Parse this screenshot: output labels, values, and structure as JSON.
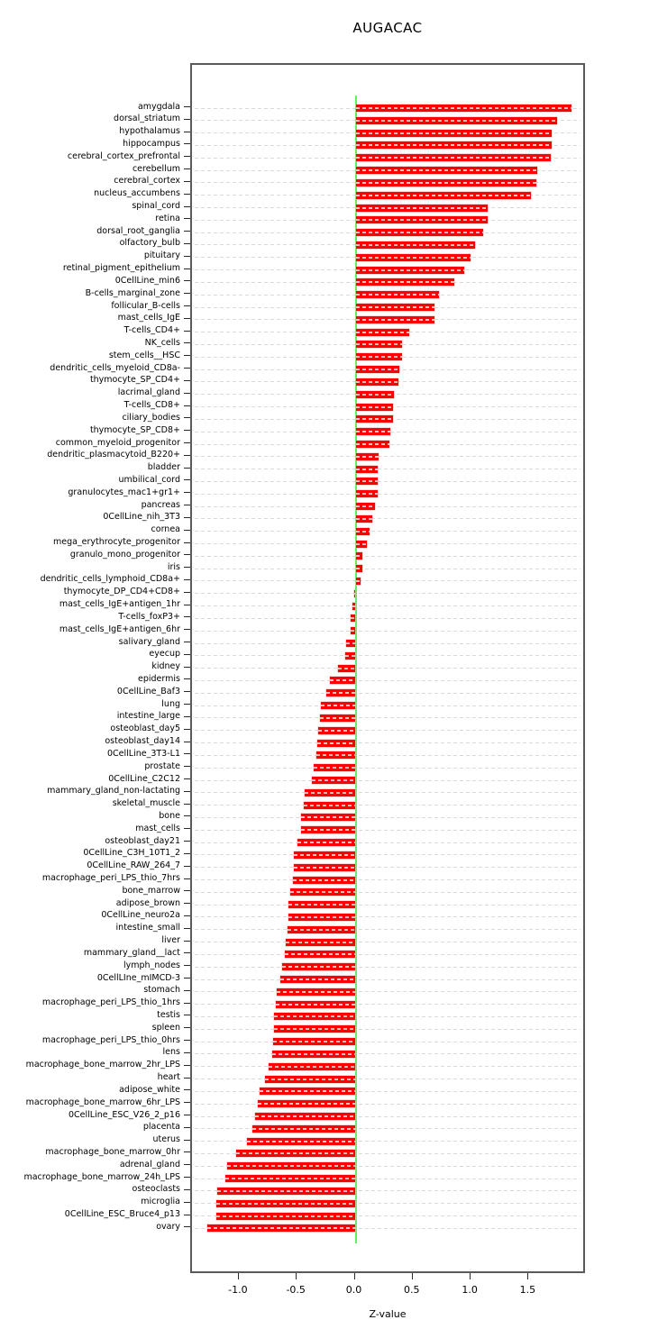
{
  "chart_data": {
    "type": "bar",
    "orientation": "horizontal",
    "title": "AUGACAC",
    "xlabel": "Z-value",
    "ylabel": "",
    "xlim": [
      -1.41,
      2.0
    ],
    "x_ticks": [
      -1.0,
      -0.5,
      0.0,
      0.5,
      1.0,
      1.5
    ],
    "x_tick_labels": [
      "-1.0",
      "-0.5",
      "0.0",
      "0.5",
      "1.0",
      "1.5"
    ],
    "grid": "dashed horizontal line per category",
    "legend": "none",
    "zero_reference_line": 0.0,
    "bar_color": "#ff0000",
    "zero_line_color": "#5ef05e",
    "grid_color": "#d9d9d9",
    "categories": [
      "amygdala",
      "dorsal_striatum",
      "hypothalamus",
      "hippocampus",
      "cerebral_cortex_prefrontal",
      "cerebellum",
      "cerebral_cortex",
      "nucleus_accumbens",
      "spinal_cord",
      "retina",
      "dorsal_root_ganglia",
      "olfactory_bulb",
      "pituitary",
      "retinal_pigment_epithelium",
      "0CellLine_min6",
      "B-cells_marginal_zone",
      "follicular_B-cells",
      "mast_cells_IgE",
      "T-cells_CD4+",
      "NK_cells",
      "stem_cells__HSC",
      "dendritic_cells_myeloid_CD8a-",
      "thymocyte_SP_CD4+",
      "lacrimal_gland",
      "T-cells_CD8+",
      "ciliary_bodies",
      "thymocyte_SP_CD8+",
      "common_myeloid_progenitor",
      "dendritic_plasmacytoid_B220+",
      "bladder",
      "umbilical_cord",
      "granulocytes_mac1+gr1+",
      "pancreas",
      "0CellLine_nih_3T3",
      "cornea",
      "mega_erythrocyte_progenitor",
      "granulo_mono_progenitor",
      "iris",
      "dendritic_cells_lymphoid_CD8a+",
      "thymocyte_DP_CD4+CD8+",
      "mast_cells_IgE+antigen_1hr",
      "T-cells_foxP3+",
      "mast_cells_IgE+antigen_6hr",
      "salivary_gland",
      "eyecup",
      "kidney",
      "epidermis",
      "0CellLine_Baf3",
      "lung",
      "intestine_large",
      "osteoblast_day5",
      "osteoblast_day14",
      "0CellLine_3T3-L1",
      "prostate",
      "0CellLine_C2C12",
      "mammary_gland_non-lactating",
      "skeletal_muscle",
      "bone",
      "mast_cells",
      "osteoblast_day21",
      "0CellLine_C3H_10T1_2",
      "0CellLine_RAW_264_7",
      "macrophage_peri_LPS_thio_7hrs",
      "bone_marrow",
      "adipose_brown",
      "0CellLine_neuro2a",
      "intestine_small",
      "liver",
      "mammary_gland__lact",
      "lymph_nodes",
      "0CellLIne_mIMCD-3",
      "stomach",
      "macrophage_peri_LPS_thio_1hrs",
      "testis",
      "spleen",
      "macrophage_peri_LPS_thio_0hrs",
      "lens",
      "macrophage_bone_marrow_2hr_LPS",
      "heart",
      "adipose_white",
      "macrophage_bone_marrow_6hr_LPS",
      "0CellLine_ESC_V26_2_p16",
      "placenta",
      "uterus",
      "macrophage_bone_marrow_0hr",
      "adrenal_gland",
      "macrophage_bone_marrow_24h_LPS",
      "osteoclasts",
      "microglia",
      "0CellLine_ESC_Bruce4_p13",
      "ovary"
    ],
    "values": [
      1.86,
      1.74,
      1.69,
      1.69,
      1.68,
      1.57,
      1.56,
      1.51,
      1.14,
      1.14,
      1.1,
      1.03,
      0.99,
      0.94,
      0.85,
      0.72,
      0.68,
      0.68,
      0.46,
      0.4,
      0.4,
      0.38,
      0.37,
      0.33,
      0.32,
      0.32,
      0.3,
      0.29,
      0.2,
      0.19,
      0.19,
      0.19,
      0.17,
      0.14,
      0.12,
      0.1,
      0.06,
      0.06,
      0.04,
      -0.01,
      -0.03,
      -0.04,
      -0.04,
      -0.08,
      -0.09,
      -0.15,
      -0.22,
      -0.25,
      -0.3,
      -0.31,
      -0.32,
      -0.33,
      -0.34,
      -0.36,
      -0.38,
      -0.44,
      -0.45,
      -0.47,
      -0.47,
      -0.5,
      -0.53,
      -0.53,
      -0.54,
      -0.56,
      -0.58,
      -0.58,
      -0.59,
      -0.6,
      -0.61,
      -0.63,
      -0.65,
      -0.68,
      -0.69,
      -0.7,
      -0.7,
      -0.71,
      -0.72,
      -0.75,
      -0.78,
      -0.83,
      -0.84,
      -0.87,
      -0.89,
      -0.94,
      -1.03,
      -1.11,
      -1.12,
      -1.19,
      -1.2,
      -1.2,
      -1.28
    ]
  }
}
